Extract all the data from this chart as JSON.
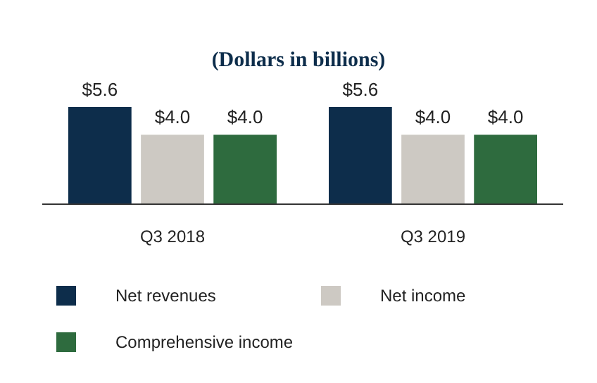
{
  "chart_data": {
    "type": "bar",
    "title": "(Dollars in billions)",
    "categories": [
      "Q3 2018",
      "Q3 2019"
    ],
    "series": [
      {
        "name": "Net revenues",
        "color": "#0d2d4b",
        "values": [
          5.6,
          5.6
        ],
        "value_labels": [
          "$5.6",
          "$5.6"
        ]
      },
      {
        "name": "Net income",
        "color": "#cdc9c3",
        "values": [
          4.0,
          4.0
        ],
        "value_labels": [
          "$4.0",
          "$4.0"
        ]
      },
      {
        "name": "Comprehensive income",
        "color": "#2e6b3e",
        "values": [
          4.0,
          4.0
        ],
        "value_labels": [
          "$4.0",
          "$4.0"
        ]
      }
    ],
    "legend": "bottom",
    "tick_labels": "x"
  }
}
